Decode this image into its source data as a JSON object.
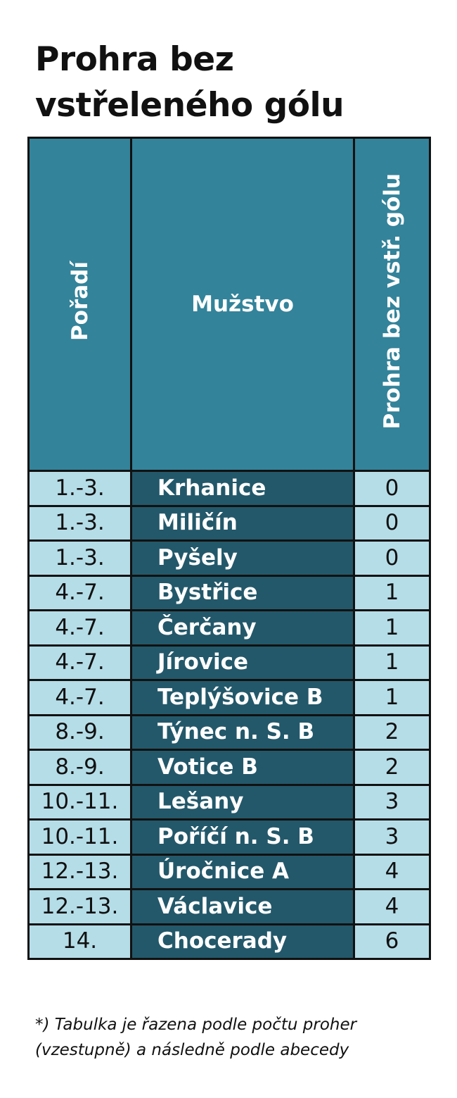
{
  "title": "Prohra bez vstřeleného gólu",
  "headers": {
    "rank": "Pořadí",
    "team": "Mužstvo",
    "value": "Prohra bez vstř. gólu"
  },
  "rows": [
    {
      "rank": "1.-3.",
      "team": "Krhanice",
      "value": "0"
    },
    {
      "rank": "1.-3.",
      "team": "Miličín",
      "value": "0"
    },
    {
      "rank": "1.-3.",
      "team": "Pyšely",
      "value": "0"
    },
    {
      "rank": "4.-7.",
      "team": "Bystřice",
      "value": "1"
    },
    {
      "rank": "4.-7.",
      "team": "Čerčany",
      "value": "1"
    },
    {
      "rank": "4.-7.",
      "team": "Jírovice",
      "value": "1"
    },
    {
      "rank": "4.-7.",
      "team": "Teplýšovice B",
      "value": "1"
    },
    {
      "rank": "8.-9.",
      "team": "Týnec n. S. B",
      "value": "2"
    },
    {
      "rank": "8.-9.",
      "team": "Votice B",
      "value": "2"
    },
    {
      "rank": "10.-11.",
      "team": "Lešany",
      "value": "3"
    },
    {
      "rank": "10.-11.",
      "team": "Poříčí n. S. B",
      "value": "3"
    },
    {
      "rank": "12.-13.",
      "team": "Úročnice A",
      "value": "4"
    },
    {
      "rank": "12.-13.",
      "team": "Václavice",
      "value": "4"
    },
    {
      "rank": "14.",
      "team": "Chocerady",
      "value": "6"
    }
  ],
  "footnote": "*) Tabulka je řazena podle počtu proher (vzestupně) a následně podle abecedy",
  "colors": {
    "header_bg": "#33839a",
    "team_bg": "#23586a",
    "cell_bg": "#b5dde8",
    "border": "#111111"
  }
}
